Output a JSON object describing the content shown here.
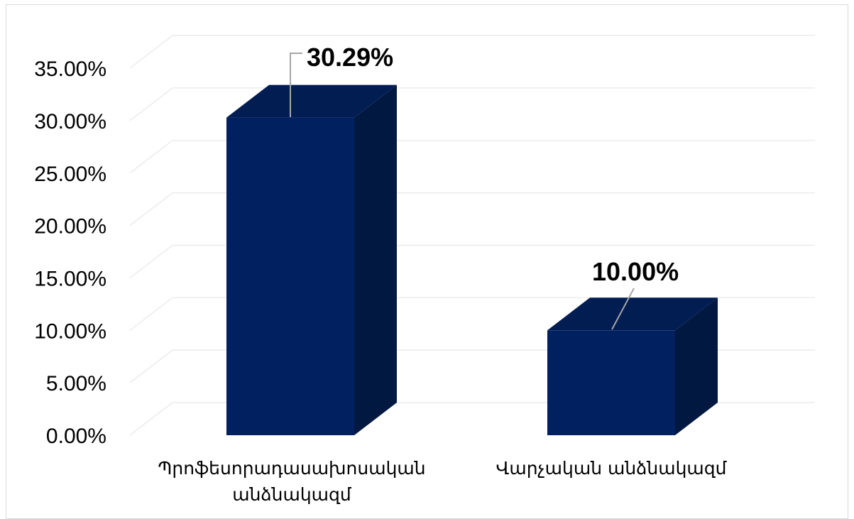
{
  "chart_data": {
    "type": "bar",
    "style": "3d-column",
    "categories": [
      [
        "Պրոֆեսորադասախոսական",
        "անձնակազմ"
      ],
      [
        "Վարչական անձնակազմ"
      ]
    ],
    "values": [
      30.29,
      10.0
    ],
    "data_labels": [
      "30.29%",
      "10.00%"
    ],
    "y_ticks": [
      "0.00%",
      "5.00%",
      "10.00%",
      "15.00%",
      "20.00%",
      "25.00%",
      "30.00%",
      "35.00%"
    ],
    "ylim": [
      0,
      35
    ],
    "grid": true,
    "legend": "none",
    "colors": {
      "bar_front": "#012060",
      "bar_side": "#011841",
      "bar_top": "#021d52",
      "grid": "#ececec",
      "leader": "#a6a6a6"
    }
  }
}
